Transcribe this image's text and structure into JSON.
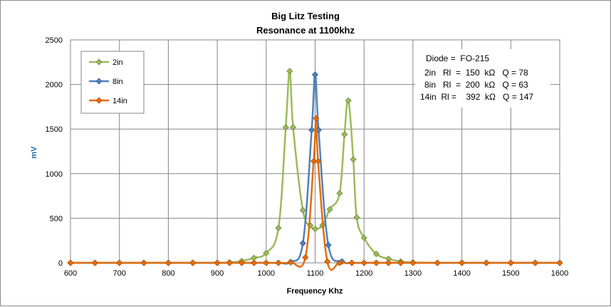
{
  "chart_data": {
    "type": "line",
    "title": "Big Litz Testing",
    "subtitle": "Resonance at 1100khz",
    "xlabel": "Frequency Khz",
    "ylabel": "mV",
    "xlim": [
      600,
      1600
    ],
    "ylim": [
      0,
      2500
    ],
    "x_ticks": [
      600,
      700,
      800,
      900,
      1000,
      1100,
      1200,
      1300,
      1400,
      1500,
      1600
    ],
    "y_ticks": [
      0,
      500,
      1000,
      1500,
      2000,
      2500
    ],
    "grid": "vertical and horizontal major gridlines",
    "legend_position": "top-left",
    "colors": {
      "2in": "#9bbb59",
      "8in": "#4f81bd",
      "14in": "#e46c0a"
    },
    "series": [
      {
        "name": "2in",
        "points": [
          [
            600,
            0
          ],
          [
            650,
            0
          ],
          [
            700,
            0
          ],
          [
            750,
            0
          ],
          [
            800,
            0
          ],
          [
            850,
            0
          ],
          [
            900,
            0
          ],
          [
            925,
            5
          ],
          [
            950,
            20
          ],
          [
            975,
            55
          ],
          [
            1000,
            110
          ],
          [
            1025,
            390
          ],
          [
            1040,
            1520
          ],
          [
            1048,
            2150
          ],
          [
            1055,
            1520
          ],
          [
            1075,
            590
          ],
          [
            1090,
            420
          ],
          [
            1100,
            380
          ],
          [
            1115,
            420
          ],
          [
            1130,
            600
          ],
          [
            1150,
            780
          ],
          [
            1160,
            1440
          ],
          [
            1168,
            1820
          ],
          [
            1178,
            1160
          ],
          [
            1185,
            510
          ],
          [
            1200,
            280
          ],
          [
            1225,
            100
          ],
          [
            1250,
            45
          ],
          [
            1275,
            15
          ],
          [
            1300,
            5
          ],
          [
            1350,
            0
          ],
          [
            1400,
            0
          ],
          [
            1450,
            0
          ],
          [
            1500,
            0
          ],
          [
            1550,
            0
          ],
          [
            1600,
            0
          ]
        ]
      },
      {
        "name": "8in",
        "points": [
          [
            600,
            0
          ],
          [
            650,
            0
          ],
          [
            700,
            0
          ],
          [
            750,
            0
          ],
          [
            800,
            0
          ],
          [
            850,
            0
          ],
          [
            900,
            0
          ],
          [
            925,
            0
          ],
          [
            950,
            0
          ],
          [
            975,
            0
          ],
          [
            1000,
            0
          ],
          [
            1025,
            0
          ],
          [
            1050,
            10
          ],
          [
            1075,
            220
          ],
          [
            1093,
            1490
          ],
          [
            1100,
            2110
          ],
          [
            1107,
            1490
          ],
          [
            1127,
            200
          ],
          [
            1155,
            15
          ],
          [
            1175,
            0
          ],
          [
            1200,
            0
          ],
          [
            1225,
            0
          ],
          [
            1250,
            0
          ],
          [
            1275,
            0
          ],
          [
            1300,
            0
          ],
          [
            1350,
            0
          ],
          [
            1400,
            0
          ],
          [
            1450,
            0
          ],
          [
            1500,
            0
          ],
          [
            1550,
            0
          ],
          [
            1600,
            0
          ]
        ]
      },
      {
        "name": "14in",
        "points": [
          [
            600,
            0
          ],
          [
            650,
            0
          ],
          [
            700,
            0
          ],
          [
            750,
            0
          ],
          [
            800,
            0
          ],
          [
            850,
            0
          ],
          [
            900,
            0
          ],
          [
            925,
            0
          ],
          [
            950,
            0
          ],
          [
            975,
            0
          ],
          [
            1000,
            0
          ],
          [
            1025,
            0
          ],
          [
            1050,
            5
          ],
          [
            1080,
            60
          ],
          [
            1097,
            1140
          ],
          [
            1102,
            1620
          ],
          [
            1106,
            1140
          ],
          [
            1125,
            15
          ],
          [
            1150,
            0
          ],
          [
            1175,
            0
          ],
          [
            1200,
            0
          ],
          [
            1225,
            0
          ],
          [
            1250,
            0
          ],
          [
            1275,
            0
          ],
          [
            1300,
            0
          ],
          [
            1350,
            0
          ],
          [
            1400,
            0
          ],
          [
            1450,
            0
          ],
          [
            1500,
            0
          ],
          [
            1550,
            0
          ],
          [
            1600,
            0
          ]
        ]
      }
    ],
    "annotations": [
      "Diode =  FO-215",
      "2in   Rl  =  150  kΩ   Q = 78",
      "8in   Rl  =  200  kΩ   Q = 63",
      "14in  Rl =    392  kΩ   Q = 147"
    ]
  }
}
